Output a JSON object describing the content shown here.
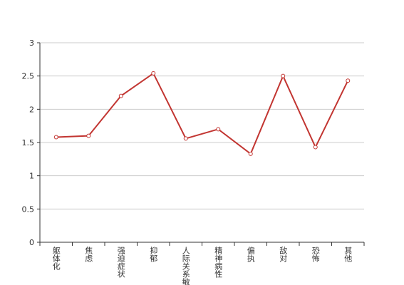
{
  "chart_data": {
    "type": "line",
    "categories": [
      "躯体化",
      "焦虑",
      "强迫症状",
      "抑郁",
      "人际关系敏感",
      "精神病性",
      "偏执",
      "敌对",
      "恐怖",
      "其他"
    ],
    "values": [
      1.58,
      1.6,
      2.2,
      2.54,
      1.56,
      1.7,
      1.33,
      2.5,
      1.43,
      2.43
    ],
    "color": "#c23531",
    "ylim": [
      0,
      3
    ],
    "yticks": [
      0,
      0.5,
      1,
      1.5,
      2,
      2.5,
      3
    ],
    "grid": true
  }
}
